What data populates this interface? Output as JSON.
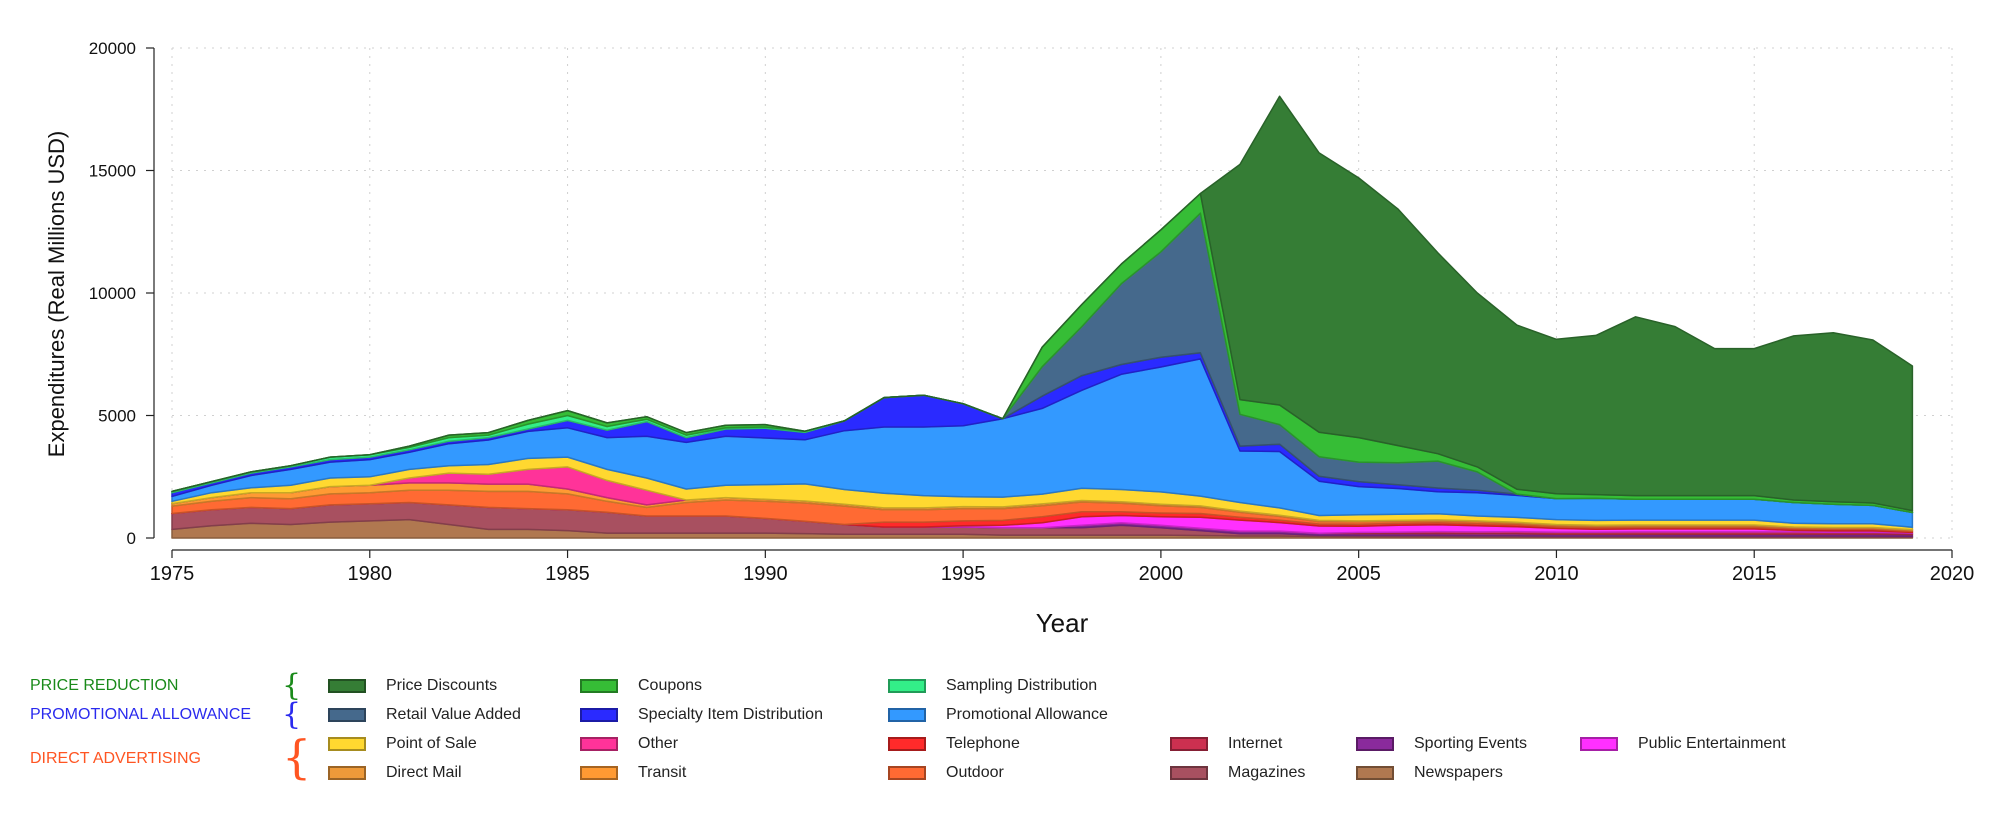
{
  "chart_data": {
    "type": "area",
    "stacked": true,
    "xlabel": "Year",
    "ylabel": "Expenditures (Real Millions USD)",
    "xlim": [
      1975,
      2020
    ],
    "ylim": [
      0,
      20000
    ],
    "xticks": [
      1975,
      1980,
      1985,
      1990,
      1995,
      2000,
      2005,
      2010,
      2015,
      2020
    ],
    "yticks": [
      0,
      5000,
      10000,
      15000,
      20000
    ],
    "grid": true,
    "legend_position": "bottom",
    "x": [
      1975,
      1976,
      1977,
      1978,
      1979,
      1980,
      1981,
      1982,
      1983,
      1984,
      1985,
      1986,
      1987,
      1988,
      1989,
      1990,
      1991,
      1992,
      1993,
      1994,
      1995,
      1996,
      1997,
      1998,
      1999,
      2000,
      2001,
      2002,
      2003,
      2004,
      2005,
      2006,
      2007,
      2008,
      2009,
      2010,
      2011,
      2012,
      2013,
      2014,
      2015,
      2016,
      2017,
      2018,
      2019
    ],
    "series": [
      {
        "name": "Newspapers",
        "color": "#b07850",
        "values": [
          350,
          500,
          600,
          550,
          650,
          700,
          750,
          550,
          350,
          350,
          300,
          200,
          200,
          200,
          200,
          200,
          180,
          150,
          150,
          150,
          150,
          120,
          120,
          120,
          120,
          120,
          100,
          80,
          80,
          60,
          50,
          50,
          50,
          40,
          40,
          30,
          30,
          30,
          30,
          30,
          30,
          30,
          30,
          30,
          30
        ]
      },
      {
        "name": "Magazines",
        "color": "#a85060",
        "values": [
          650,
          650,
          650,
          650,
          700,
          700,
          700,
          800,
          900,
          850,
          850,
          850,
          700,
          700,
          700,
          600,
          500,
          400,
          300,
          300,
          300,
          300,
          300,
          300,
          400,
          300,
          200,
          100,
          100,
          50,
          50,
          50,
          50,
          50,
          50,
          50,
          50,
          50,
          50,
          50,
          50,
          50,
          50,
          50,
          40
        ]
      },
      {
        "name": "Sporting Events",
        "color": "#8a2a9c",
        "values": [
          0,
          0,
          0,
          0,
          0,
          0,
          0,
          0,
          0,
          0,
          0,
          0,
          0,
          0,
          0,
          0,
          0,
          0,
          0,
          0,
          0,
          0,
          0,
          100,
          100,
          100,
          100,
          100,
          100,
          80,
          80,
          80,
          80,
          80,
          80,
          70,
          70,
          70,
          70,
          70,
          70,
          70,
          70,
          70,
          70
        ]
      },
      {
        "name": "Internet",
        "color": "#cc3050",
        "values": [
          0,
          0,
          0,
          0,
          0,
          0,
          0,
          0,
          0,
          0,
          0,
          0,
          0,
          0,
          0,
          0,
          0,
          0,
          0,
          0,
          0,
          0,
          0,
          0,
          0,
          0,
          0,
          0,
          0,
          0,
          50,
          60,
          80,
          80,
          90,
          90,
          90,
          100,
          100,
          100,
          100,
          100,
          80,
          80,
          60
        ]
      },
      {
        "name": "Public Entertainment",
        "color": "#ff30ff",
        "values": [
          0,
          0,
          0,
          0,
          0,
          0,
          0,
          0,
          0,
          0,
          0,
          0,
          0,
          0,
          0,
          0,
          0,
          0,
          0,
          0,
          50,
          100,
          200,
          350,
          300,
          350,
          450,
          450,
          350,
          300,
          250,
          280,
          280,
          250,
          200,
          150,
          120,
          120,
          120,
          120,
          120,
          60,
          60,
          60,
          30
        ]
      },
      {
        "name": "Telephone",
        "color": "#ff2a2a",
        "values": [
          0,
          0,
          0,
          0,
          0,
          0,
          0,
          0,
          0,
          0,
          0,
          0,
          0,
          0,
          0,
          0,
          0,
          0,
          200,
          200,
          200,
          200,
          250,
          200,
          150,
          150,
          150,
          120,
          100,
          80,
          80,
          80,
          80,
          80,
          80,
          60,
          60,
          60,
          60,
          60,
          60,
          60,
          60,
          60,
          40
        ]
      },
      {
        "name": "Outdoor",
        "color": "#ff6a33",
        "values": [
          300,
          350,
          400,
          400,
          450,
          450,
          500,
          600,
          650,
          700,
          650,
          450,
          350,
          550,
          650,
          700,
          750,
          750,
          500,
          500,
          500,
          480,
          450,
          400,
          350,
          300,
          250,
          200,
          150,
          100,
          100,
          80,
          80,
          80,
          60,
          60,
          60,
          60,
          60,
          60,
          60,
          50,
          50,
          50,
          40
        ]
      },
      {
        "name": "Transit",
        "color": "#ff9a33",
        "values": [
          100,
          150,
          200,
          250,
          300,
          300,
          300,
          300,
          300,
          300,
          200,
          150,
          100,
          100,
          100,
          80,
          80,
          80,
          80,
          80,
          80,
          70,
          70,
          60,
          60,
          60,
          60,
          50,
          50,
          50,
          40,
          40,
          40,
          40,
          40,
          40,
          40,
          40,
          40,
          40,
          40,
          30,
          30,
          30,
          30
        ]
      },
      {
        "name": "Direct Mail",
        "color": "#ee9a3a",
        "values": [
          0,
          0,
          0,
          0,
          0,
          0,
          0,
          0,
          0,
          0,
          0,
          0,
          0,
          0,
          0,
          0,
          0,
          0,
          0,
          0,
          0,
          0,
          0,
          0,
          0,
          0,
          0,
          0,
          0,
          0,
          0,
          0,
          0,
          0,
          0,
          0,
          0,
          0,
          0,
          0,
          0,
          0,
          0,
          0,
          0
        ]
      },
      {
        "name": "Other",
        "color": "#ff3399",
        "values": [
          0,
          0,
          0,
          0,
          0,
          0,
          200,
          400,
          400,
          600,
          900,
          700,
          600,
          0,
          0,
          0,
          0,
          0,
          0,
          0,
          0,
          0,
          0,
          0,
          0,
          0,
          0,
          0,
          0,
          0,
          0,
          0,
          0,
          0,
          0,
          0,
          0,
          0,
          0,
          0,
          0,
          0,
          0,
          0,
          0
        ]
      },
      {
        "name": "Point of Sale",
        "color": "#ffd830",
        "values": [
          100,
          200,
          200,
          300,
          350,
          350,
          350,
          300,
          400,
          450,
          400,
          450,
          500,
          450,
          500,
          600,
          700,
          600,
          600,
          500,
          400,
          400,
          400,
          500,
          500,
          500,
          400,
          350,
          300,
          200,
          250,
          250,
          250,
          200,
          200,
          200,
          200,
          200,
          200,
          200,
          200,
          150,
          150,
          150,
          100
        ]
      },
      {
        "name": "Promotional Allowance",
        "color": "#3399ff",
        "values": [
          200,
          300,
          500,
          650,
          650,
          700,
          700,
          900,
          1000,
          1100,
          1200,
          1300,
          1700,
          1900,
          2000,
          1900,
          1800,
          2400,
          2700,
          2800,
          2900,
          3200,
          3500,
          4000,
          4700,
          5100,
          5600,
          2100,
          2300,
          1400,
          1150,
          1050,
          900,
          950,
          900,
          860,
          900,
          850,
          850,
          850,
          850,
          850,
          800,
          750,
          600
        ]
      },
      {
        "name": "Specialty Item Distribution",
        "color": "#2a2aff",
        "values": [
          150,
          100,
          100,
          100,
          100,
          100,
          100,
          100,
          100,
          100,
          300,
          300,
          600,
          200,
          300,
          400,
          300,
          400,
          1200,
          1300,
          900,
          0,
          500,
          600,
          400,
          400,
          250,
          200,
          300,
          200,
          200,
          150,
          150,
          100,
          50,
          0,
          0,
          0,
          0,
          0,
          0,
          0,
          0,
          0,
          0
        ]
      },
      {
        "name": "Retail Value Added",
        "color": "#45698c",
        "values": [
          0,
          0,
          0,
          0,
          0,
          0,
          0,
          0,
          0,
          0,
          0,
          0,
          0,
          0,
          0,
          0,
          0,
          0,
          0,
          0,
          0,
          0,
          1200,
          2000,
          3300,
          4300,
          5700,
          1300,
          800,
          800,
          800,
          900,
          1100,
          750,
          0,
          0,
          0,
          0,
          0,
          0,
          0,
          0,
          0,
          0,
          0
        ]
      },
      {
        "name": "Sampling Distribution",
        "color": "#33ee88",
        "values": [
          50,
          50,
          50,
          50,
          100,
          100,
          100,
          150,
          100,
          200,
          200,
          150,
          100,
          100,
          50,
          50,
          50,
          0,
          0,
          0,
          0,
          0,
          0,
          0,
          0,
          0,
          0,
          0,
          0,
          0,
          0,
          0,
          0,
          0,
          0,
          0,
          0,
          0,
          0,
          0,
          0,
          0,
          0,
          0,
          0
        ]
      },
      {
        "name": "Coupons",
        "color": "#36bd36",
        "values": [
          0,
          0,
          0,
          0,
          0,
          0,
          50,
          100,
          100,
          150,
          200,
          150,
          100,
          100,
          100,
          100,
          0,
          0,
          0,
          0,
          0,
          0,
          800,
          900,
          800,
          900,
          800,
          600,
          800,
          1000,
          1000,
          700,
          300,
          200,
          200,
          200,
          150,
          150,
          150,
          150,
          150,
          100,
          100,
          100,
          80
        ]
      },
      {
        "name": "Price Discounts",
        "color": "#357d35",
        "values": [
          0,
          0,
          0,
          0,
          0,
          0,
          0,
          0,
          0,
          0,
          0,
          0,
          0,
          0,
          0,
          0,
          0,
          0,
          0,
          0,
          0,
          0,
          0,
          0,
          0,
          0,
          0,
          9600,
          12600,
          11400,
          10600,
          9650,
          8200,
          7100,
          6700,
          6300,
          6500,
          7300,
          6900,
          6000,
          6000,
          6700,
          6900,
          6650,
          5900
        ]
      }
    ],
    "legend_groups": [
      {
        "label": "PRICE REDUCTION",
        "color": "#1a8a1a",
        "items": [
          "Price Discounts",
          "Coupons",
          "Sampling Distribution"
        ]
      },
      {
        "label": "PROMOTIONAL ALLOWANCE",
        "color": "#2a2aee",
        "items": [
          "Retail Value Added",
          "Specialty Item Distribution",
          "Promotional Allowance"
        ]
      },
      {
        "label": "DIRECT ADVERTISING",
        "color": "#ff5522",
        "items": [
          "Point of Sale",
          "Other",
          "Telephone",
          "Internet",
          "Sporting Events",
          "Public Entertainment",
          "Direct Mail",
          "Transit",
          "Outdoor",
          "Magazines",
          "Newspapers"
        ]
      }
    ]
  }
}
